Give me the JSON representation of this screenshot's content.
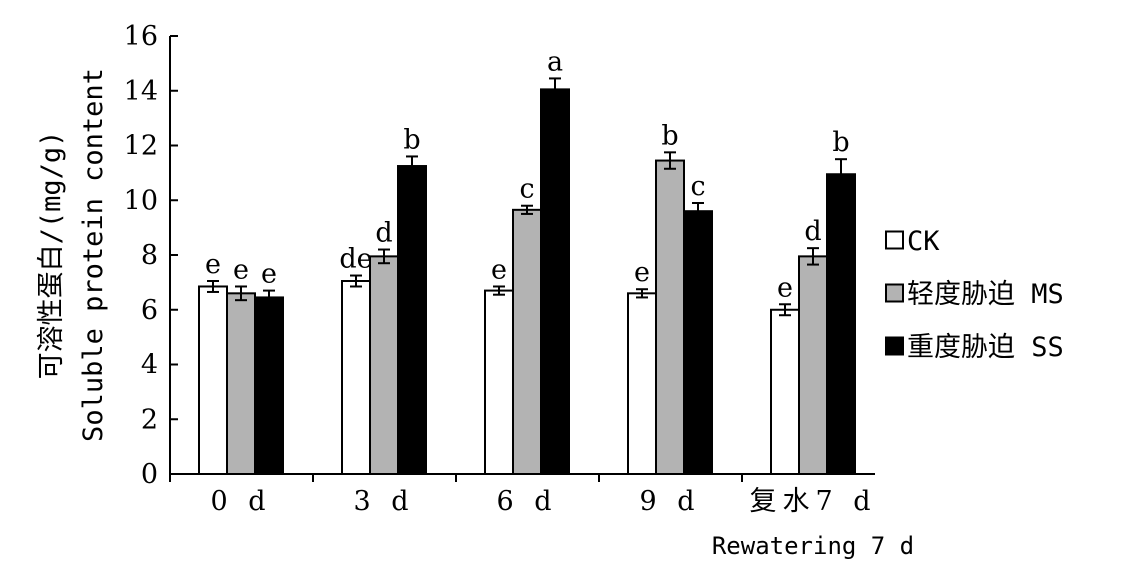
{
  "chart_data": {
    "type": "bar",
    "ylabel_lines": [
      "可溶性蛋白/(mg/g)",
      "Soluble protein content"
    ],
    "ylim": [
      0,
      16
    ],
    "yticks": [
      0,
      2,
      4,
      6,
      8,
      10,
      12,
      14,
      16
    ],
    "grid": false,
    "legend_position": "right",
    "categories": [
      {
        "label": "0 d",
        "sublabel": ""
      },
      {
        "label": "3 d",
        "sublabel": ""
      },
      {
        "label": "6 d",
        "sublabel": ""
      },
      {
        "label": "9 d",
        "sublabel": ""
      },
      {
        "label": "复水7 d",
        "sublabel": "Rewatering 7 d"
      }
    ],
    "series": [
      {
        "name": "CK",
        "color": "#ffffff",
        "values": [
          6.85,
          7.05,
          6.7,
          6.6,
          6.0
        ],
        "errors": [
          0.2,
          0.2,
          0.15,
          0.15,
          0.2
        ],
        "letters": [
          "e",
          "de",
          "e",
          "e",
          "e"
        ]
      },
      {
        "name": "轻度胁迫 MS",
        "color": "#b3b3b3",
        "values": [
          6.6,
          7.95,
          9.65,
          11.45,
          7.95
        ],
        "errors": [
          0.25,
          0.25,
          0.15,
          0.3,
          0.3
        ],
        "letters": [
          "e",
          "d",
          "c",
          "b",
          "d"
        ]
      },
      {
        "name": "重度胁迫 SS",
        "color": "#000000",
        "values": [
          6.45,
          11.25,
          14.05,
          9.6,
          10.95
        ],
        "errors": [
          0.25,
          0.35,
          0.4,
          0.3,
          0.55
        ],
        "letters": [
          "e",
          "b",
          "a",
          "c",
          "b"
        ]
      }
    ]
  }
}
